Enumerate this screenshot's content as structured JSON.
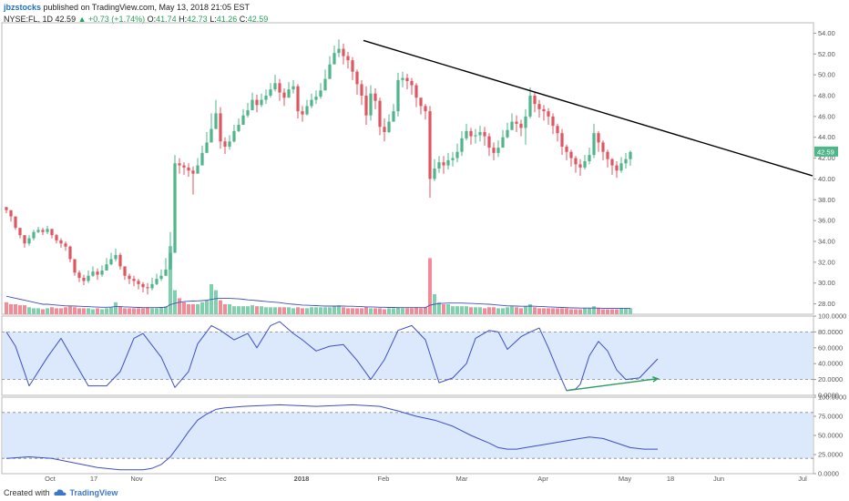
{
  "header": {
    "author": "jbzstocks",
    "published_text": "published on TradingView.com, May 13, 2018 21:05 EST",
    "symbol": "NYSE:FL, 1D",
    "price": "42.59",
    "change": "+0.73 (+1.74%)",
    "ohlc_o_label": "O:",
    "ohlc_o": "41.74",
    "ohlc_h_label": "H:",
    "ohlc_h": "42.73",
    "ohlc_l_label": "L:",
    "ohlc_l": "41.26",
    "ohlc_c_label": "C:",
    "ohlc_c": "42.59"
  },
  "footer": {
    "created_with": "Created with",
    "brand": "TradingView"
  },
  "colors": {
    "up": "#4fb58a",
    "down": "#e0555f",
    "vol_up": "#7fd0ad",
    "vol_down": "#f28b96",
    "band": "#dce8fb",
    "osc_line": "#3f4fc4",
    "trend": "#000000",
    "arrow": "#2a9d5c",
    "last_price_bg": "#4fb58a"
  },
  "chart_data": [
    {
      "type": "candlestick",
      "name": "Price",
      "ylim": [
        27,
        55
      ],
      "yticks": [
        "54.00",
        "52.00",
        "50.00",
        "48.00",
        "46.00",
        "44.00",
        "42.00",
        "40.00",
        "38.00",
        "36.00",
        "34.00",
        "32.00",
        "30.00",
        "28.00"
      ],
      "last_price_label": "42.59",
      "xticks": [
        "Oct",
        "17",
        "Nov",
        "Dec",
        "2018",
        "Feb",
        "Mar",
        "Apr",
        "May",
        "18",
        "Jun",
        "Jul"
      ],
      "close": [
        37.0,
        36.4,
        35.3,
        34.6,
        33.8,
        34.3,
        34.9,
        35.1,
        34.9,
        35.2,
        34.6,
        34.1,
        33.8,
        33.5,
        32.3,
        31.0,
        30.5,
        30.2,
        30.7,
        31.1,
        30.8,
        31.2,
        31.8,
        32.3,
        32.7,
        31.6,
        30.7,
        30.4,
        30.2,
        29.9,
        29.6,
        29.5,
        29.9,
        30.4,
        30.7,
        31.3,
        32.9,
        41.5,
        41.3,
        41.1,
        40.8,
        40.5,
        41.3,
        42.5,
        43.5,
        44.8,
        46.3,
        43.6,
        43.1,
        43.6,
        44.6,
        45.2,
        46.1,
        46.6,
        47.6,
        47.1,
        47.6,
        48.0,
        48.6,
        49.2,
        48.3,
        47.8,
        48.6,
        48.9,
        46.5,
        46.2,
        47.0,
        47.6,
        47.9,
        48.5,
        49.6,
        51.0,
        52.1,
        52.5,
        51.8,
        51.4,
        50.3,
        49.1,
        48.0,
        46.1,
        48.2,
        47.5,
        45.0,
        44.5,
        45.5,
        46.5,
        49.5,
        49.7,
        49.4,
        49.0,
        47.8,
        47.0,
        46.5,
        40.0,
        41.0,
        41.6,
        41.3,
        41.8,
        42.0,
        42.6,
        43.9,
        44.6,
        44.1,
        44.2,
        44.5,
        44.1,
        43.0,
        42.5,
        43.0,
        44.0,
        44.7,
        45.5,
        45.3,
        44.9,
        46.0,
        48.0,
        47.2,
        46.7,
        46.5,
        46.0,
        45.1,
        44.4,
        43.1,
        42.6,
        42.0,
        41.4,
        41.1,
        41.7,
        42.3,
        44.4,
        43.5,
        42.6,
        41.9,
        41.3,
        40.8,
        41.5,
        41.9,
        42.59
      ],
      "high": [
        37.3,
        36.8,
        36.0,
        35.0,
        34.4,
        34.6,
        35.1,
        35.4,
        35.3,
        35.5,
        35.1,
        34.7,
        34.3,
        34.0,
        33.6,
        31.7,
        31.2,
        30.8,
        31.2,
        31.6,
        31.4,
        31.7,
        32.4,
        32.9,
        33.3,
        32.9,
        31.5,
        30.9,
        30.7,
        30.4,
        30.1,
        30.0,
        30.5,
        30.9,
        31.3,
        32.4,
        34.9,
        42.3,
        42.0,
        41.6,
        41.5,
        41.2,
        42.0,
        43.2,
        44.5,
        46.3,
        47.6,
        46.9,
        44.0,
        44.2,
        45.2,
        45.8,
        46.7,
        47.3,
        48.3,
        48.1,
        48.2,
        48.6,
        49.2,
        50.0,
        49.6,
        48.7,
        49.3,
        49.5,
        49.1,
        47.0,
        47.6,
        48.2,
        48.5,
        49.2,
        50.5,
        51.8,
        52.8,
        53.4,
        53.0,
        52.2,
        51.7,
        50.5,
        49.5,
        48.9,
        49.0,
        48.7,
        47.8,
        45.8,
        46.2,
        47.2,
        50.2,
        50.3,
        50.1,
        49.7,
        49.2,
        47.8,
        47.2,
        47.0,
        41.9,
        42.2,
        42.2,
        42.5,
        42.6,
        43.4,
        44.6,
        45.3,
        44.9,
        44.8,
        45.1,
        45.0,
        44.4,
        43.5,
        43.7,
        44.7,
        45.4,
        46.3,
        46.1,
        45.7,
        46.7,
        48.8,
        48.3,
        47.6,
        47.1,
        46.8,
        46.3,
        45.3,
        44.8,
        43.3,
        42.8,
        42.2,
        41.9,
        42.3,
        43.0,
        45.3,
        44.6,
        43.7,
        42.8,
        42.0,
        41.7,
        42.1,
        42.5,
        42.73
      ],
      "low": [
        36.7,
        35.9,
        35.1,
        34.3,
        33.4,
        33.6,
        34.1,
        34.8,
        34.6,
        34.7,
        34.3,
        33.8,
        33.4,
        33.1,
        32.0,
        30.7,
        30.1,
        29.8,
        30.0,
        30.6,
        30.3,
        30.6,
        31.2,
        31.7,
        32.1,
        31.3,
        30.3,
        29.9,
        29.7,
        29.4,
        29.1,
        28.9,
        29.3,
        29.8,
        30.2,
        30.7,
        32.1,
        38.1,
        40.5,
        40.4,
        40.2,
        38.5,
        40.7,
        41.8,
        42.8,
        44.0,
        44.8,
        42.9,
        42.4,
        42.8,
        43.5,
        44.5,
        45.3,
        45.9,
        46.8,
        46.4,
        46.9,
        47.2,
        47.8,
        48.4,
        47.5,
        47.0,
        47.8,
        48.2,
        45.8,
        45.5,
        46.1,
        46.8,
        47.2,
        47.7,
        48.8,
        50.2,
        51.3,
        51.7,
        51.0,
        50.6,
        49.5,
        48.1,
        47.1,
        45.2,
        45.6,
        46.7,
        44.2,
        43.6,
        44.4,
        45.5,
        46.0,
        48.8,
        48.6,
        48.1,
        46.9,
        46.2,
        45.7,
        38.2,
        39.8,
        40.6,
        40.5,
        40.9,
        41.2,
        41.6,
        42.2,
        43.7,
        43.3,
        43.4,
        43.6,
        43.2,
        42.2,
        41.8,
        42.1,
        43.1,
        43.9,
        44.7,
        44.5,
        44.1,
        43.3,
        45.8,
        46.4,
        45.9,
        45.6,
        45.2,
        44.3,
        43.6,
        42.3,
        41.8,
        41.2,
        40.6,
        40.3,
        40.9,
        41.4,
        42.0,
        42.6,
        41.8,
        41.1,
        40.4,
        40.1,
        40.6,
        41.0,
        41.26
      ],
      "volume": [
        0.6,
        0.5,
        0.5,
        0.45,
        0.45,
        0.35,
        0.3,
        0.3,
        0.25,
        0.3,
        0.35,
        0.3,
        0.3,
        0.35,
        0.4,
        0.35,
        0.3,
        0.3,
        0.3,
        0.25,
        0.3,
        0.25,
        0.3,
        0.35,
        0.6,
        0.4,
        0.3,
        0.3,
        0.3,
        0.3,
        0.3,
        0.35,
        0.3,
        0.3,
        0.35,
        0.4,
        3.4,
        1.2,
        0.8,
        0.6,
        0.5,
        0.5,
        0.5,
        0.6,
        0.7,
        1.5,
        1.2,
        0.7,
        0.5,
        0.5,
        0.4,
        0.4,
        0.4,
        0.4,
        0.45,
        0.4,
        0.4,
        0.35,
        0.35,
        0.35,
        0.35,
        0.35,
        0.35,
        0.3,
        0.35,
        0.3,
        0.3,
        0.35,
        0.35,
        0.35,
        0.35,
        0.35,
        0.4,
        0.45,
        0.35,
        0.3,
        0.3,
        0.3,
        0.3,
        0.35,
        0.3,
        0.3,
        0.3,
        0.25,
        0.3,
        0.3,
        0.35,
        0.3,
        0.3,
        0.3,
        0.35,
        0.3,
        0.35,
        2.8,
        1.0,
        0.6,
        0.5,
        0.5,
        0.4,
        0.4,
        0.4,
        0.4,
        0.35,
        0.35,
        0.35,
        0.3,
        0.35,
        0.35,
        0.3,
        0.3,
        0.35,
        0.4,
        0.35,
        0.3,
        0.4,
        0.5,
        0.35,
        0.3,
        0.3,
        0.3,
        0.3,
        0.3,
        0.3,
        0.3,
        0.25,
        0.25,
        0.25,
        0.3,
        0.3,
        0.4,
        0.3,
        0.25,
        0.25,
        0.25,
        0.25,
        0.3,
        0.3,
        0.3
      ],
      "volume_ma": [
        0.9,
        0.85,
        0.8,
        0.75,
        0.7,
        0.65,
        0.6,
        0.55,
        0.5,
        0.5,
        0.48,
        0.46,
        0.44,
        0.42,
        0.42,
        0.41,
        0.4,
        0.39,
        0.38,
        0.37,
        0.36,
        0.35,
        0.35,
        0.36,
        0.38,
        0.38,
        0.37,
        0.36,
        0.35,
        0.34,
        0.33,
        0.33,
        0.33,
        0.33,
        0.34,
        0.35,
        0.48,
        0.55,
        0.6,
        0.63,
        0.65,
        0.66,
        0.67,
        0.68,
        0.7,
        0.74,
        0.78,
        0.8,
        0.8,
        0.79,
        0.78,
        0.77,
        0.75,
        0.72,
        0.7,
        0.68,
        0.66,
        0.64,
        0.62,
        0.6,
        0.58,
        0.55,
        0.52,
        0.5,
        0.48,
        0.46,
        0.45,
        0.44,
        0.43,
        0.42,
        0.41,
        0.41,
        0.41,
        0.41,
        0.41,
        0.4,
        0.4,
        0.39,
        0.38,
        0.37,
        0.37,
        0.36,
        0.35,
        0.35,
        0.34,
        0.34,
        0.33,
        0.33,
        0.33,
        0.33,
        0.33,
        0.33,
        0.33,
        0.45,
        0.5,
        0.53,
        0.55,
        0.56,
        0.56,
        0.56,
        0.56,
        0.55,
        0.54,
        0.53,
        0.52,
        0.51,
        0.5,
        0.48,
        0.46,
        0.44,
        0.42,
        0.42,
        0.41,
        0.4,
        0.4,
        0.41,
        0.4,
        0.39,
        0.38,
        0.37,
        0.36,
        0.35,
        0.34,
        0.33,
        0.32,
        0.32,
        0.31,
        0.31,
        0.31,
        0.31,
        0.31,
        0.3,
        0.3,
        0.3,
        0.3,
        0.3,
        0.3,
        0.3
      ]
    },
    {
      "type": "line",
      "name": "Stochastic oscillator",
      "ylim": [
        0,
        100
      ],
      "yticks": [
        "100.0000",
        "80.0000",
        "60.0000",
        "40.0000",
        "20.0000",
        "0.0000"
      ],
      "band": [
        20,
        80
      ],
      "x": [
        0,
        2,
        5,
        9,
        12,
        15,
        18,
        22,
        25,
        28,
        30,
        34,
        37,
        40,
        42,
        45,
        47,
        50,
        53,
        55,
        58,
        60,
        63,
        65,
        68,
        71,
        74,
        77,
        80,
        83,
        86,
        89,
        92,
        95,
        98,
        101,
        103,
        106,
        108,
        110,
        113,
        115,
        117,
        119,
        121,
        123,
        125,
        126,
        128,
        130,
        132,
        134,
        136,
        139,
        141,
        143
      ],
      "values": [
        80,
        62,
        12,
        48,
        72,
        42,
        12,
        12,
        30,
        72,
        78,
        48,
        10,
        30,
        65,
        88,
        82,
        70,
        78,
        60,
        88,
        93,
        78,
        70,
        56,
        62,
        64,
        44,
        20,
        45,
        82,
        88,
        70,
        16,
        22,
        40,
        72,
        82,
        80,
        58,
        74,
        80,
        85,
        60,
        32,
        6,
        8,
        14,
        50,
        68,
        56,
        32,
        20,
        22,
        34,
        46
      ],
      "arrow_from": [
        123,
        6
      ],
      "arrow_to": [
        143,
        21
      ]
    },
    {
      "type": "line",
      "name": "Smoothed oscillator",
      "ylim": [
        0,
        100
      ],
      "yticks": [
        "100.0000",
        "75.0000",
        "50.0000",
        "25.0000",
        "0.0000"
      ],
      "band": [
        20,
        80
      ],
      "x": [
        0,
        5,
        10,
        15,
        20,
        25,
        30,
        32,
        34,
        36,
        38,
        40,
        42,
        44,
        46,
        48,
        52,
        60,
        68,
        76,
        82,
        86,
        90,
        94,
        98,
        102,
        106,
        108,
        110,
        112,
        114,
        116,
        120,
        124,
        128,
        131,
        134,
        137,
        140,
        143
      ],
      "values": [
        20,
        22,
        20,
        14,
        8,
        5,
        5,
        7,
        12,
        22,
        38,
        55,
        70,
        78,
        84,
        86,
        88,
        90,
        88,
        90,
        88,
        82,
        75,
        70,
        62,
        50,
        40,
        34,
        32,
        32,
        34,
        36,
        40,
        44,
        48,
        46,
        40,
        34,
        32,
        32
      ]
    }
  ]
}
